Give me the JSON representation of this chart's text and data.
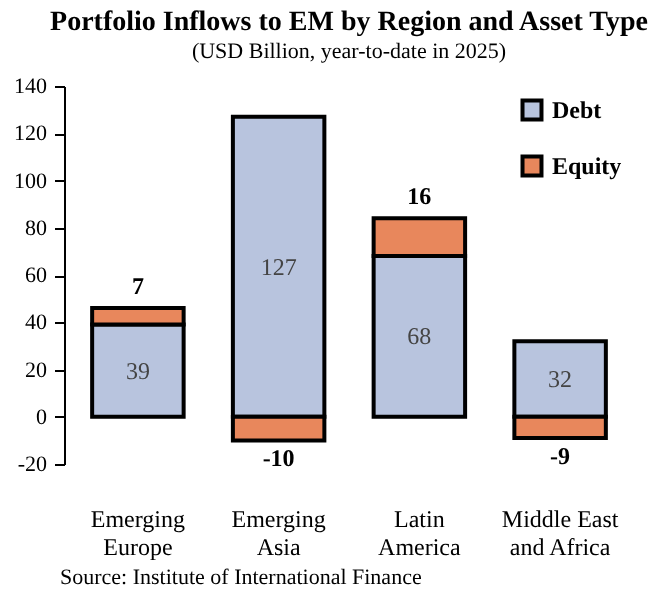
{
  "chart_data": {
    "type": "bar",
    "title": "Portfolio Inflows to EM by Region and Asset Type",
    "subtitle": "(USD Billion, year-to-date in 2025)",
    "categories": [
      "Emerging Europe",
      "Emerging Asia",
      "Latin America",
      "Middle East and Africa"
    ],
    "series": [
      {
        "name": "Debt",
        "color": "#b8c4de",
        "values": [
          39,
          127,
          68,
          32
        ]
      },
      {
        "name": "Equity",
        "color": "#e8875c",
        "values": [
          7,
          -10,
          16,
          -9
        ]
      }
    ],
    "stacked": true,
    "data_labels": true,
    "ylim": [
      -20,
      140
    ],
    "yticks": [
      -20,
      0,
      20,
      40,
      60,
      80,
      100,
      120,
      140
    ],
    "grid": false,
    "legend": "top right",
    "annotations": [
      "Source: Institute of International Finance"
    ]
  }
}
